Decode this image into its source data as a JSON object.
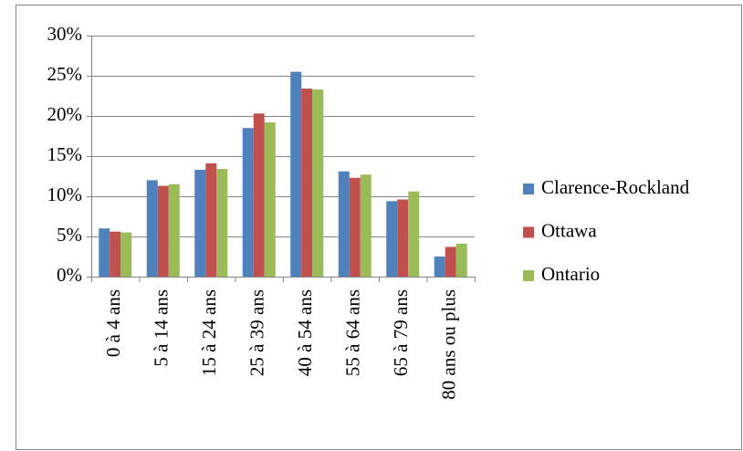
{
  "chart_data": {
    "type": "bar",
    "categories": [
      "0 à 4 ans",
      "5 à 14 ans",
      "15 à 24 ans",
      "25 à 39 ans",
      "40 à 54 ans",
      "55 à 64 ans",
      "65 à 79 ans",
      "80 ans ou plus"
    ],
    "series": [
      {
        "name": "Clarence-Rockland",
        "color": "#4f81bd",
        "values": [
          6.0,
          12.0,
          13.3,
          18.5,
          25.5,
          13.1,
          9.4,
          2.5
        ]
      },
      {
        "name": "Ottawa",
        "color": "#c0504d",
        "values": [
          5.6,
          11.3,
          14.1,
          20.3,
          23.4,
          12.3,
          9.6,
          3.7
        ]
      },
      {
        "name": "Ontario",
        "color": "#9bbb59",
        "values": [
          5.5,
          11.5,
          13.4,
          19.2,
          23.3,
          12.7,
          10.6,
          4.1
        ]
      }
    ],
    "ylim": [
      0,
      30
    ],
    "yticks": [
      {
        "value": 0,
        "label": "0%"
      },
      {
        "value": 5,
        "label": "5%"
      },
      {
        "value": 10,
        "label": "10%"
      },
      {
        "value": 15,
        "label": "15%"
      },
      {
        "value": 20,
        "label": "20%"
      },
      {
        "value": 25,
        "label": "25%"
      },
      {
        "value": 30,
        "label": "30%"
      }
    ],
    "grid": true,
    "legend": "right"
  }
}
